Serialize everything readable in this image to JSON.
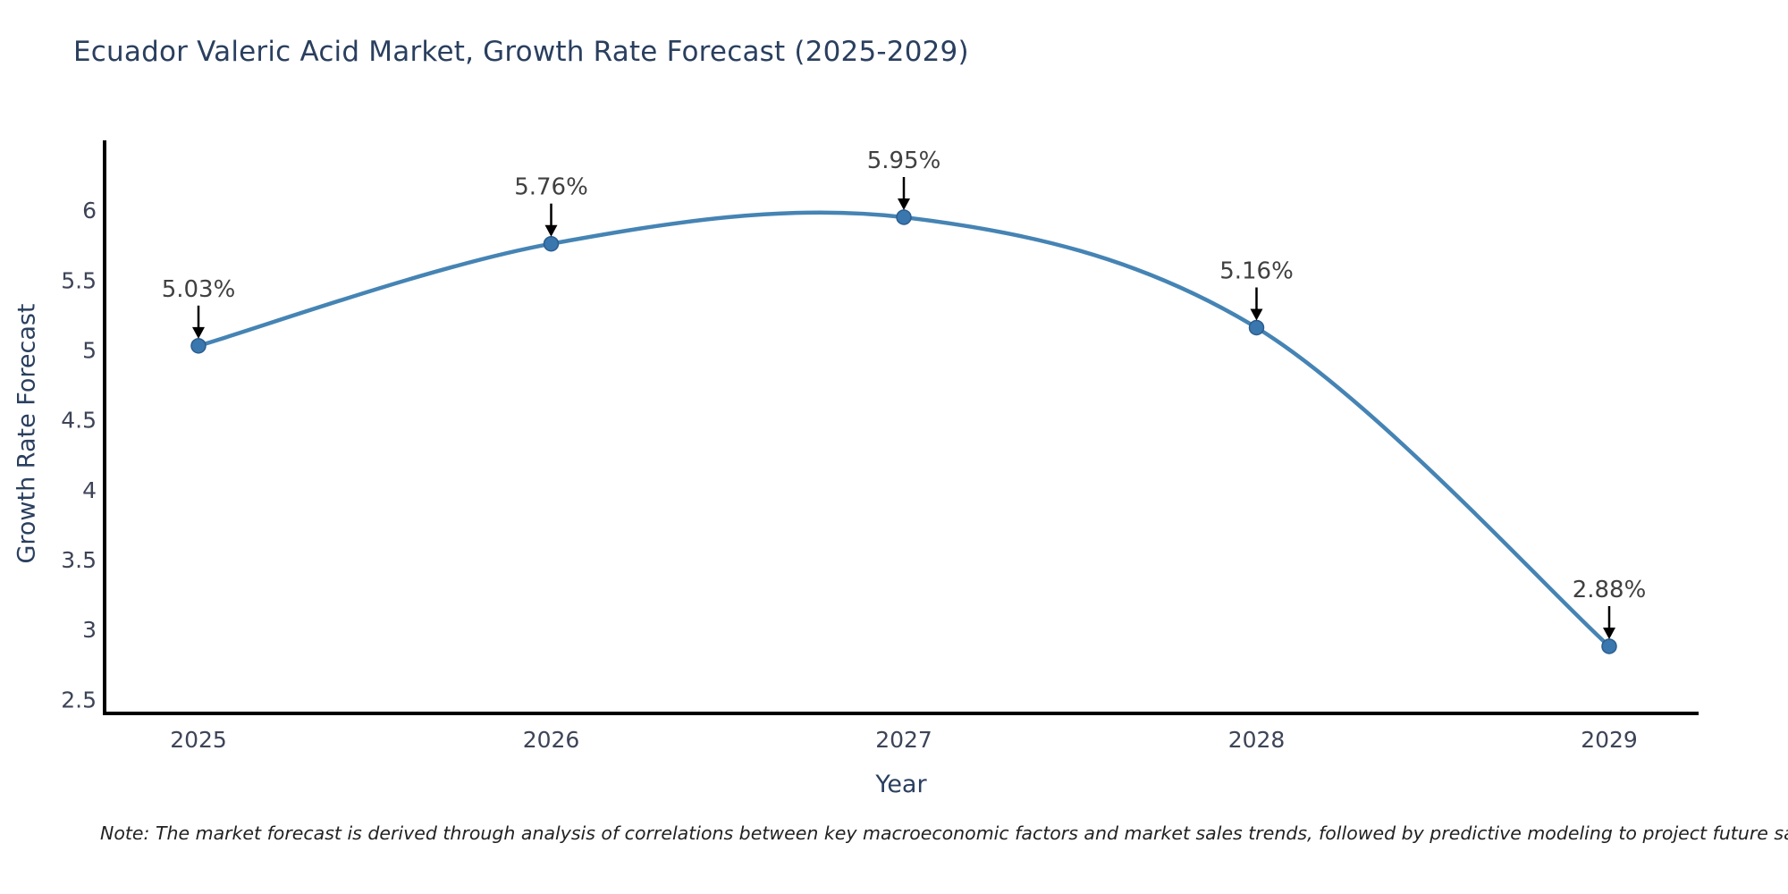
{
  "chart_data": {
    "type": "line",
    "title": "Ecuador Valeric Acid Market, Growth Rate Forecast (2025-2029)",
    "xlabel": "Year",
    "ylabel": "Growth Rate Forecast",
    "categories": [
      "2025",
      "2026",
      "2027",
      "2028",
      "2029"
    ],
    "values": [
      5.03,
      5.76,
      5.95,
      5.16,
      2.88
    ],
    "point_labels": [
      "5.03%",
      "5.76%",
      "5.95%",
      "5.16%",
      "2.88%"
    ],
    "y_ticks": [
      2.5,
      3,
      3.5,
      4,
      4.5,
      5,
      5.5,
      6
    ],
    "ylim": [
      2.4,
      6.5
    ],
    "line_shape": "spline",
    "markers": true,
    "grid": false,
    "legend": "none",
    "annotations": "percent value labels with black down-arrows above each data point",
    "spines": "left and bottom only, black",
    "colors": {
      "line": "#4584b4",
      "marker_fill": "#3a77ae",
      "marker_edge": "#2a5d8e",
      "axis_line": "#000000",
      "title_text": "#2a3f5f",
      "tick_text": "#3d4458",
      "annotation_text": "#404040",
      "arrow": "#000000",
      "note_text": "#222222",
      "background": "#ffffff"
    }
  },
  "note": "Note: The market forecast is derived through analysis of correlations between key macroeconomic factors and market sales trends, followed by predictive modeling to project future sales"
}
